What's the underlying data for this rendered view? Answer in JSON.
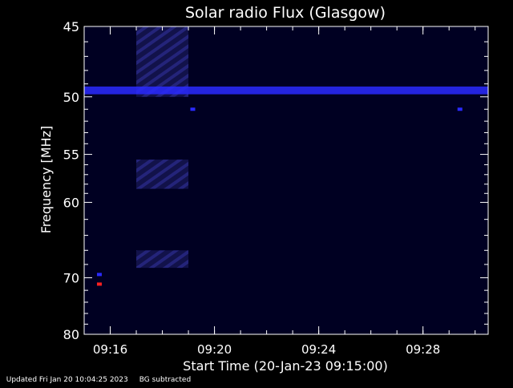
{
  "chart_data": {
    "type": "heatmap",
    "title": "Solar radio Flux (Glasgow)",
    "xlabel": "Start Time (20-Jan-23 09:15:00)",
    "ylabel": "Frequency [MHz]",
    "x_range": [
      "09:15:00",
      "09:30:30"
    ],
    "x_ticks": [
      "09:16",
      "09:20",
      "09:24",
      "09:28"
    ],
    "y_range": [
      45,
      80
    ],
    "y_ticks": [
      45,
      50,
      55,
      60,
      70,
      80
    ],
    "y_scale": "reciprocal",
    "background_color": "#000022",
    "colors": {
      "low": "#020218",
      "medium": "#1a1a66",
      "high": "#2a2aff",
      "peak": "#ff2020"
    },
    "features": [
      {
        "kind": "band",
        "freq_from": 45,
        "freq_to": 50,
        "time_from": "09:17:00",
        "time_to": "09:19:00",
        "level": "medium"
      },
      {
        "kind": "band",
        "freq_from": 49.2,
        "freq_to": 49.8,
        "time_from": "09:15:00",
        "time_to": "09:30:30",
        "level": "high"
      },
      {
        "kind": "band",
        "freq_from": 55.5,
        "freq_to": 58.5,
        "time_from": "09:17:00",
        "time_to": "09:19:00",
        "level": "medium"
      },
      {
        "kind": "band",
        "freq_from": 66.0,
        "freq_to": 68.5,
        "time_from": "09:17:00",
        "time_to": "09:19:00",
        "level": "medium"
      },
      {
        "kind": "spot",
        "freq": 51.0,
        "time": "09:19:10",
        "level": "high"
      },
      {
        "kind": "spot",
        "freq": 51.0,
        "time": "09:29:25",
        "level": "high"
      },
      {
        "kind": "spot",
        "freq": 69.5,
        "time": "09:15:35",
        "level": "high"
      },
      {
        "kind": "spot",
        "freq": 71.0,
        "time": "09:15:35",
        "level": "peak"
      }
    ]
  },
  "footer": {
    "updated": "Updated Fri Jan 20 10:04:25 2023",
    "note": "BG subtracted"
  }
}
